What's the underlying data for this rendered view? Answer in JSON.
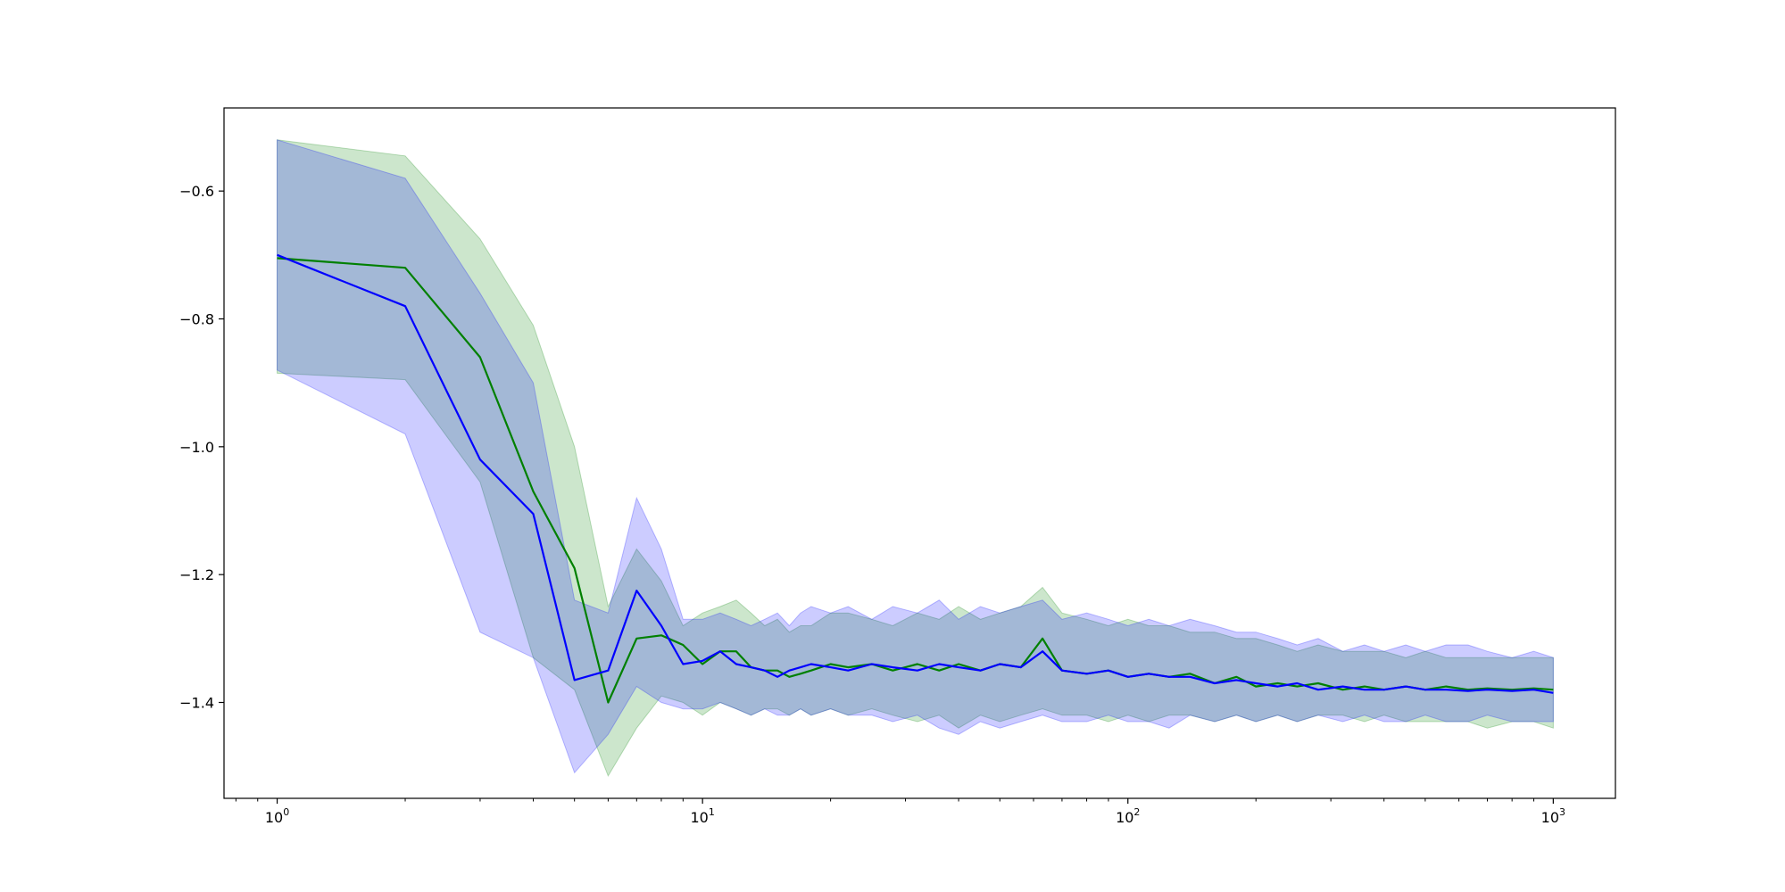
{
  "chart_data": {
    "type": "line",
    "title": "",
    "xlabel": "",
    "ylabel": "",
    "xscale": "log",
    "xlim": [
      0.75,
      1400
    ],
    "ylim": [
      -1.55,
      -0.47
    ],
    "grid": false,
    "y_ticks": [
      -0.6,
      -0.8,
      -1.0,
      -1.2,
      -1.4
    ],
    "y_tick_labels": [
      "−0.6",
      "−0.8",
      "−1.0",
      "−1.2",
      "−1.4"
    ],
    "x_ticks": [
      1,
      10,
      100,
      1000
    ],
    "x_tick_labels": [
      {
        "base": "10",
        "exp": "0"
      },
      {
        "base": "10",
        "exp": "1"
      },
      {
        "base": "10",
        "exp": "2"
      },
      {
        "base": "10",
        "exp": "3"
      }
    ],
    "series": [
      {
        "color": "#008000",
        "band_color": "#008000",
        "x": [
          1,
          2,
          3,
          4,
          5,
          6,
          7,
          8,
          9,
          10,
          11,
          12,
          13,
          14,
          15,
          16,
          17,
          18,
          20,
          22,
          25,
          28,
          32,
          36,
          40,
          45,
          50,
          56,
          63,
          70,
          80,
          90,
          100,
          112,
          125,
          140,
          160,
          180,
          200,
          225,
          250,
          280,
          320,
          360,
          400,
          450,
          500,
          560,
          630,
          700,
          800,
          900,
          1000
        ],
        "mean": [
          -0.705,
          -0.72,
          -0.86,
          -1.07,
          -1.19,
          -1.4,
          -1.3,
          -1.295,
          -1.31,
          -1.34,
          -1.32,
          -1.32,
          -1.345,
          -1.35,
          -1.35,
          -1.36,
          -1.355,
          -1.35,
          -1.34,
          -1.345,
          -1.34,
          -1.35,
          -1.34,
          -1.35,
          -1.34,
          -1.35,
          -1.34,
          -1.345,
          -1.3,
          -1.35,
          -1.355,
          -1.35,
          -1.36,
          -1.355,
          -1.36,
          -1.355,
          -1.37,
          -1.36,
          -1.375,
          -1.37,
          -1.375,
          -1.37,
          -1.38,
          -1.375,
          -1.38,
          -1.375,
          -1.38,
          -1.375,
          -1.38,
          -1.378,
          -1.38,
          -1.378,
          -1.38
        ],
        "upper": [
          -0.52,
          -0.545,
          -0.675,
          -0.81,
          -1.0,
          -1.25,
          -1.16,
          -1.21,
          -1.28,
          -1.26,
          -1.25,
          -1.24,
          -1.26,
          -1.28,
          -1.27,
          -1.29,
          -1.28,
          -1.28,
          -1.26,
          -1.26,
          -1.27,
          -1.28,
          -1.26,
          -1.27,
          -1.25,
          -1.27,
          -1.26,
          -1.25,
          -1.22,
          -1.26,
          -1.27,
          -1.28,
          -1.27,
          -1.28,
          -1.28,
          -1.29,
          -1.29,
          -1.3,
          -1.3,
          -1.31,
          -1.32,
          -1.31,
          -1.32,
          -1.32,
          -1.32,
          -1.33,
          -1.32,
          -1.33,
          -1.33,
          -1.33,
          -1.33,
          -1.33,
          -1.33
        ],
        "lower": [
          -0.885,
          -0.895,
          -1.055,
          -1.33,
          -1.38,
          -1.515,
          -1.44,
          -1.39,
          -1.4,
          -1.42,
          -1.4,
          -1.41,
          -1.42,
          -1.41,
          -1.41,
          -1.42,
          -1.41,
          -1.42,
          -1.41,
          -1.42,
          -1.41,
          -1.42,
          -1.43,
          -1.42,
          -1.44,
          -1.42,
          -1.43,
          -1.42,
          -1.41,
          -1.42,
          -1.42,
          -1.43,
          -1.42,
          -1.43,
          -1.42,
          -1.42,
          -1.43,
          -1.42,
          -1.43,
          -1.42,
          -1.43,
          -1.42,
          -1.42,
          -1.43,
          -1.42,
          -1.43,
          -1.43,
          -1.43,
          -1.43,
          -1.44,
          -1.43,
          -1.43,
          -1.44
        ]
      },
      {
        "color": "#0000ff",
        "band_color": "#0000ff",
        "x": [
          1,
          2,
          3,
          4,
          5,
          6,
          7,
          8,
          9,
          10,
          11,
          12,
          13,
          14,
          15,
          16,
          17,
          18,
          20,
          22,
          25,
          28,
          32,
          36,
          40,
          45,
          50,
          56,
          63,
          70,
          80,
          90,
          100,
          112,
          125,
          140,
          160,
          180,
          200,
          225,
          250,
          280,
          320,
          360,
          400,
          450,
          500,
          560,
          630,
          700,
          800,
          900,
          1000
        ],
        "mean": [
          -0.7,
          -0.78,
          -1.02,
          -1.105,
          -1.365,
          -1.35,
          -1.225,
          -1.28,
          -1.34,
          -1.335,
          -1.32,
          -1.34,
          -1.345,
          -1.35,
          -1.36,
          -1.35,
          -1.345,
          -1.34,
          -1.345,
          -1.35,
          -1.34,
          -1.345,
          -1.35,
          -1.34,
          -1.345,
          -1.35,
          -1.34,
          -1.345,
          -1.32,
          -1.35,
          -1.355,
          -1.35,
          -1.36,
          -1.355,
          -1.36,
          -1.36,
          -1.37,
          -1.365,
          -1.37,
          -1.375,
          -1.37,
          -1.38,
          -1.375,
          -1.38,
          -1.38,
          -1.375,
          -1.38,
          -1.38,
          -1.382,
          -1.38,
          -1.382,
          -1.38,
          -1.385
        ],
        "upper": [
          -0.52,
          -0.58,
          -0.76,
          -0.9,
          -1.24,
          -1.26,
          -1.08,
          -1.16,
          -1.27,
          -1.27,
          -1.26,
          -1.27,
          -1.28,
          -1.27,
          -1.26,
          -1.28,
          -1.26,
          -1.25,
          -1.26,
          -1.25,
          -1.27,
          -1.25,
          -1.26,
          -1.24,
          -1.27,
          -1.25,
          -1.26,
          -1.25,
          -1.24,
          -1.27,
          -1.26,
          -1.27,
          -1.28,
          -1.27,
          -1.28,
          -1.27,
          -1.28,
          -1.29,
          -1.29,
          -1.3,
          -1.31,
          -1.3,
          -1.32,
          -1.31,
          -1.32,
          -1.31,
          -1.32,
          -1.31,
          -1.31,
          -1.32,
          -1.33,
          -1.32,
          -1.33
        ],
        "lower": [
          -0.88,
          -0.98,
          -1.29,
          -1.33,
          -1.51,
          -1.45,
          -1.375,
          -1.4,
          -1.41,
          -1.41,
          -1.4,
          -1.41,
          -1.42,
          -1.41,
          -1.42,
          -1.42,
          -1.41,
          -1.42,
          -1.41,
          -1.42,
          -1.42,
          -1.43,
          -1.42,
          -1.44,
          -1.45,
          -1.43,
          -1.44,
          -1.43,
          -1.42,
          -1.43,
          -1.43,
          -1.42,
          -1.43,
          -1.43,
          -1.44,
          -1.42,
          -1.43,
          -1.42,
          -1.43,
          -1.42,
          -1.43,
          -1.42,
          -1.43,
          -1.42,
          -1.43,
          -1.43,
          -1.42,
          -1.43,
          -1.43,
          -1.42,
          -1.43,
          -1.43,
          -1.43
        ]
      }
    ]
  }
}
